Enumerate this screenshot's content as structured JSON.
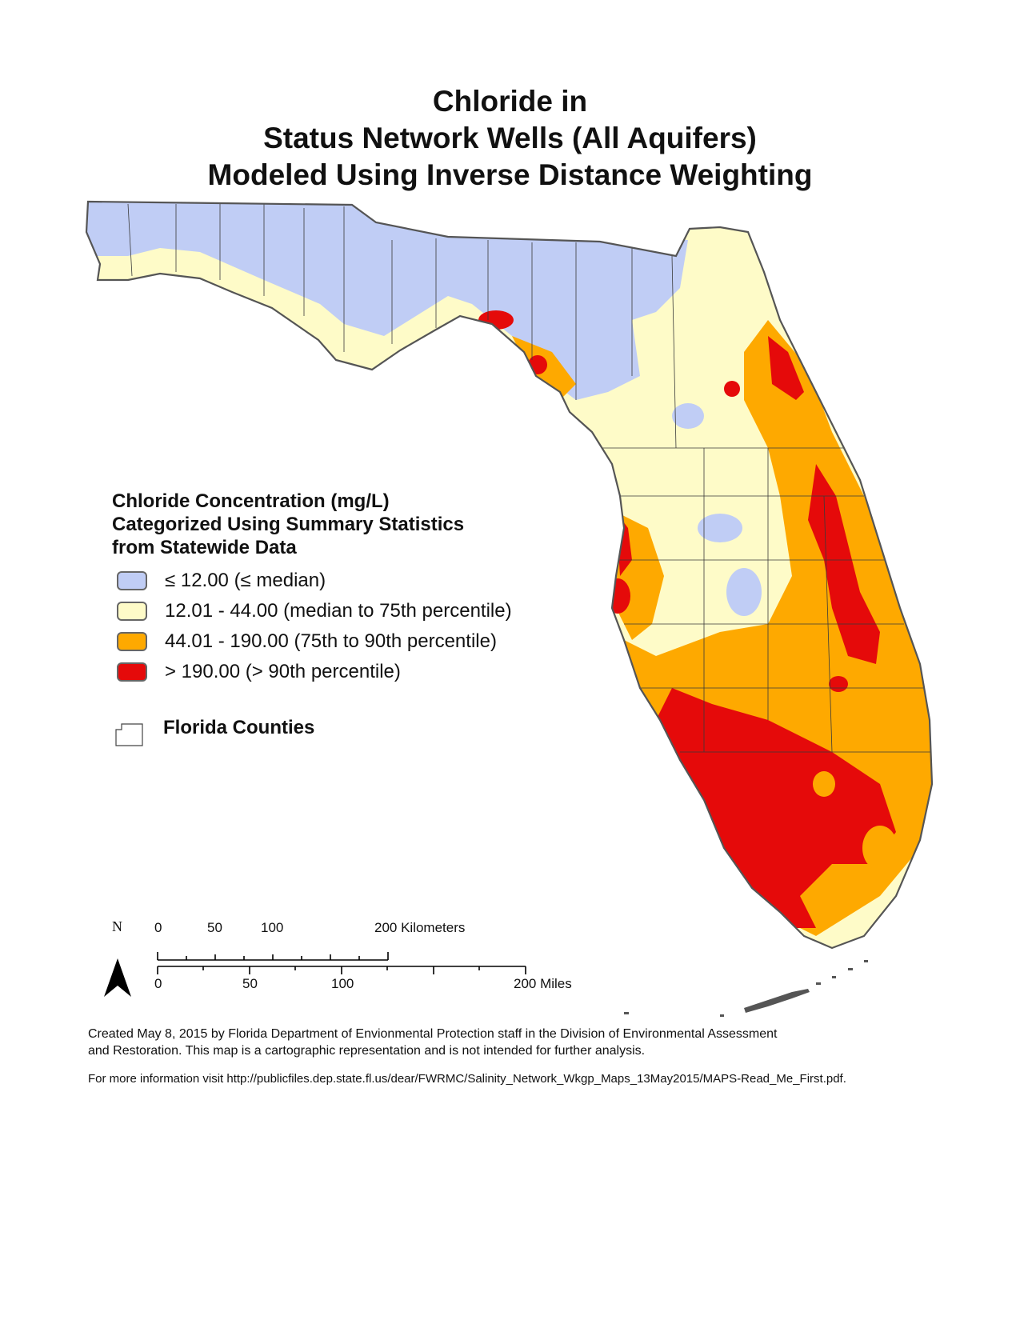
{
  "title": {
    "line1": "Chloride in",
    "line2": "Status Network Wells (All Aquifers)",
    "line3": "Modeled Using Inverse Distance Weighting"
  },
  "legend": {
    "title_line1": "Chloride Concentration (mg/L)",
    "title_line2": "Categorized Using Summary Statistics",
    "title_line3": "from Statewide Data",
    "items": [
      {
        "label": "≤ 12.00 (≤ median)",
        "color": "#c0cdf5"
      },
      {
        "label": "12.01 - 44.00 (median to 75th percentile)",
        "color": "#fefbc8"
      },
      {
        "label": "44.01 - 190.00 (75th to 90th percentile)",
        "color": "#fea900"
      },
      {
        "label": "> 190.00 (> 90th percentile)",
        "color": "#e50a0a"
      }
    ],
    "counties_label": "Florida Counties"
  },
  "north_arrow": {
    "label": "N"
  },
  "scale_bar": {
    "km_ticks": [
      "0",
      "50",
      "100",
      "200 Kilometers"
    ],
    "mile_ticks": [
      "0",
      "50",
      "100",
      "200 Miles"
    ]
  },
  "footnote": {
    "line1": "Created May 8, 2015 by Florida Department of Envionmental Protection staff in the Division of Environmental Assessment",
    "line2": "and Restoration.  This map is a cartographic representation and is not intended for further analysis.",
    "line3": "For more information visit http://publicfiles.dep.state.fl.us/dear/FWRMC/Salinity_Network_Wkgp_Maps_13May2015/MAPS-Read_Me_First.pdf."
  },
  "colors": {
    "coast": "#555555",
    "county_line": "#3a3a3a"
  }
}
